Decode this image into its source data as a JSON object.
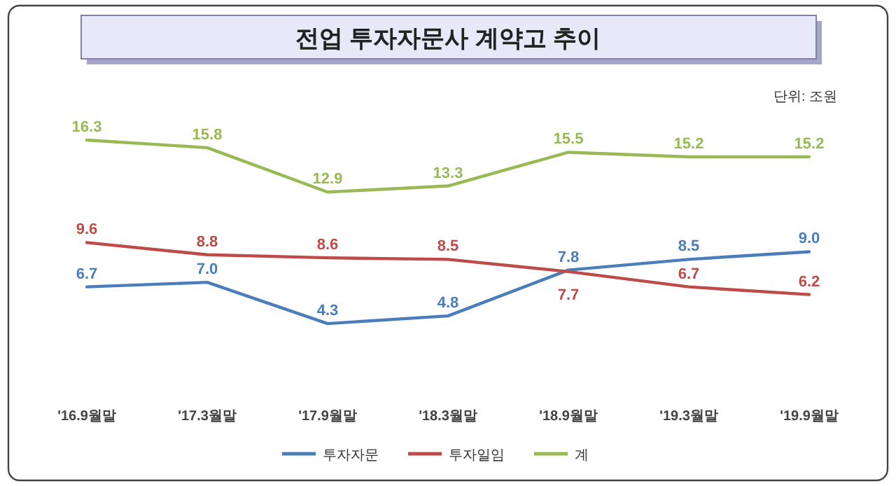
{
  "chart_data": {
    "type": "line",
    "title": "전업 투자자문사 계약고 추이",
    "annotations": [
      "단위: 조원"
    ],
    "categories": [
      "'16.9월말",
      "'17.3월말",
      "'17.9월말",
      "'18.3월말",
      "'18.9월말",
      "'19.3월말",
      "'19.9월말"
    ],
    "series": [
      {
        "name": "투자자문",
        "color": "#4a7ebb",
        "values": [
          6.7,
          7.0,
          4.3,
          4.8,
          7.8,
          8.5,
          9.0
        ],
        "value_labels": [
          "6.7",
          "7.0",
          "4.3",
          "4.8",
          "7.8",
          "8.5",
          "9.0"
        ]
      },
      {
        "name": "투자일임",
        "color": "#be4b48",
        "values": [
          9.6,
          8.8,
          8.6,
          8.5,
          7.7,
          6.7,
          6.2
        ],
        "value_labels": [
          "9.6",
          "8.8",
          "8.6",
          "8.5",
          "7.7",
          "6.7",
          "6.2"
        ]
      },
      {
        "name": "계",
        "color": "#98b954",
        "values": [
          16.3,
          15.8,
          12.9,
          13.3,
          15.5,
          15.2,
          15.2
        ],
        "value_labels": [
          "16.3",
          "15.8",
          "12.9",
          "13.3",
          "15.5",
          "15.2",
          "15.2"
        ]
      }
    ],
    "legend": "bottom",
    "line_style": "solid"
  }
}
